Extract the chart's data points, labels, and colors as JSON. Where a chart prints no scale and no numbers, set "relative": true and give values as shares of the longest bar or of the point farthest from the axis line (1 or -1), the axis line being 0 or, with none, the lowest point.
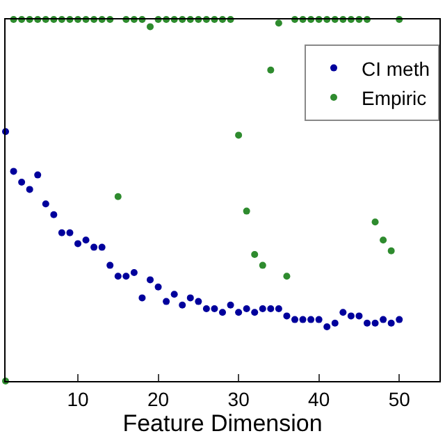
{
  "chart_data": {
    "type": "scatter",
    "relative": true,
    "xlabel": "Feature Dimension",
    "xlim": [
      1,
      55
    ],
    "xticks": [
      10,
      20,
      30,
      40,
      50
    ],
    "legend": "top right",
    "marker": "circle",
    "x": [
      1,
      2,
      3,
      4,
      5,
      6,
      7,
      8,
      9,
      10,
      11,
      12,
      13,
      14,
      15,
      16,
      17,
      18,
      19,
      20,
      21,
      22,
      23,
      24,
      25,
      26,
      27,
      28,
      29,
      30,
      31,
      32,
      33,
      34,
      35,
      36,
      37,
      38,
      39,
      40,
      41,
      42,
      43,
      44,
      45,
      46,
      47,
      48,
      49,
      50
    ],
    "series": [
      {
        "name": "CI meth",
        "color": "#00009c",
        "values": [
          0.69,
          0.58,
          0.55,
          0.53,
          0.57,
          0.49,
          0.46,
          0.41,
          0.41,
          0.38,
          0.39,
          0.37,
          0.37,
          0.32,
          0.29,
          0.29,
          0.3,
          0.23,
          0.28,
          0.26,
          0.22,
          0.24,
          0.21,
          0.23,
          0.22,
          0.2,
          0.2,
          0.19,
          0.21,
          0.19,
          0.2,
          0.19,
          0.2,
          0.2,
          0.2,
          0.18,
          0.17,
          0.17,
          0.17,
          0.17,
          0.15,
          0.16,
          0.19,
          0.18,
          0.18,
          0.16,
          0.16,
          0.17,
          0.16,
          0.17
        ]
      },
      {
        "name": "Empiric",
        "color": "#2e8b2e",
        "values": [
          0,
          1,
          1,
          1,
          1,
          1,
          1,
          1,
          1,
          1,
          1,
          1,
          1,
          1,
          0.51,
          1,
          1,
          1,
          0.98,
          1,
          1,
          1,
          1,
          1,
          1,
          1,
          1,
          1,
          1,
          0.68,
          0.47,
          0.35,
          0.32,
          0.86,
          0.99,
          0.29,
          1,
          1,
          1,
          1,
          1,
          1,
          1,
          1,
          1,
          1,
          0.44,
          0.39,
          0.36,
          1
        ]
      }
    ]
  }
}
